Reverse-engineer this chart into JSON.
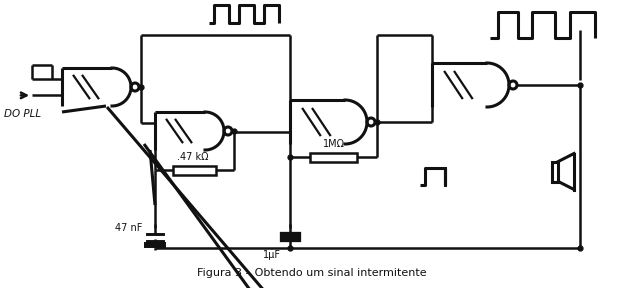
{
  "title": "Figura 3 – Obtendo um sinal intermitente",
  "bg": "#ffffff",
  "lc": "#111111",
  "lw": 1.8,
  "glw": 2.2,
  "fig_w": 6.25,
  "fig_h": 2.88,
  "dpi": 100,
  "gates": {
    "g1": [
      62,
      68,
      50,
      38
    ],
    "g2": [
      155,
      110,
      50,
      38
    ],
    "g3": [
      290,
      105,
      55,
      44
    ],
    "g4": [
      430,
      68,
      55,
      44
    ]
  },
  "labels": {
    "pll": "DO PLL",
    "r1": ".47 kΩ",
    "r2": "1MΩ",
    "c1": "47 nF",
    "c2": "1μF",
    "title": "Figura 3 – Obtendo um sinal intermitente"
  }
}
